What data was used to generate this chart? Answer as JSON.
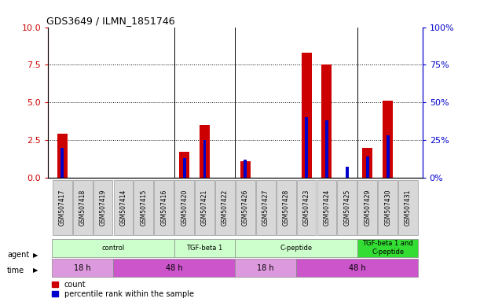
{
  "title": "GDS3649 / ILMN_1851746",
  "samples": [
    "GSM507417",
    "GSM507418",
    "GSM507419",
    "GSM507414",
    "GSM507415",
    "GSM507416",
    "GSM507420",
    "GSM507421",
    "GSM507422",
    "GSM507426",
    "GSM507427",
    "GSM507428",
    "GSM507423",
    "GSM507424",
    "GSM507425",
    "GSM507429",
    "GSM507430",
    "GSM507431"
  ],
  "count_values": [
    2.9,
    0,
    0,
    0,
    0,
    0,
    1.7,
    3.5,
    0,
    1.1,
    0,
    0,
    8.3,
    7.5,
    0,
    2.0,
    5.1,
    0
  ],
  "percentile_values": [
    20,
    0,
    0,
    0,
    0,
    0,
    13,
    25,
    0,
    12,
    0,
    0,
    40,
    38,
    7,
    14,
    28,
    0
  ],
  "ylim_left": [
    0,
    10
  ],
  "ylim_right": [
    0,
    100
  ],
  "yticks_left": [
    0,
    2.5,
    5.0,
    7.5,
    10
  ],
  "yticks_right": [
    0,
    25,
    50,
    75,
    100
  ],
  "left_color": "#cc0000",
  "right_color": "#0000cc",
  "red_bar_width": 0.5,
  "blue_bar_width": 0.15,
  "agent_row": [
    {
      "label": "control",
      "start": 0,
      "end": 5,
      "color": "#ccffcc"
    },
    {
      "label": "TGF-beta 1",
      "start": 6,
      "end": 8,
      "color": "#ccffcc"
    },
    {
      "label": "C-peptide",
      "start": 9,
      "end": 14,
      "color": "#ccffcc"
    },
    {
      "label": "TGF-beta 1 and\nC-peptide",
      "start": 15,
      "end": 17,
      "color": "#33dd33"
    }
  ],
  "time_row": [
    {
      "label": "18 h",
      "start": 0,
      "end": 2,
      "color": "#dd99dd"
    },
    {
      "label": "48 h",
      "start": 3,
      "end": 8,
      "color": "#cc55cc"
    },
    {
      "label": "18 h",
      "start": 9,
      "end": 11,
      "color": "#dd99dd"
    },
    {
      "label": "48 h",
      "start": 12,
      "end": 17,
      "color": "#cc55cc"
    }
  ],
  "legend_count_color": "#cc0000",
  "legend_pct_color": "#0000cc",
  "bg_color": "#ffffff",
  "plot_bg": "#ffffff"
}
